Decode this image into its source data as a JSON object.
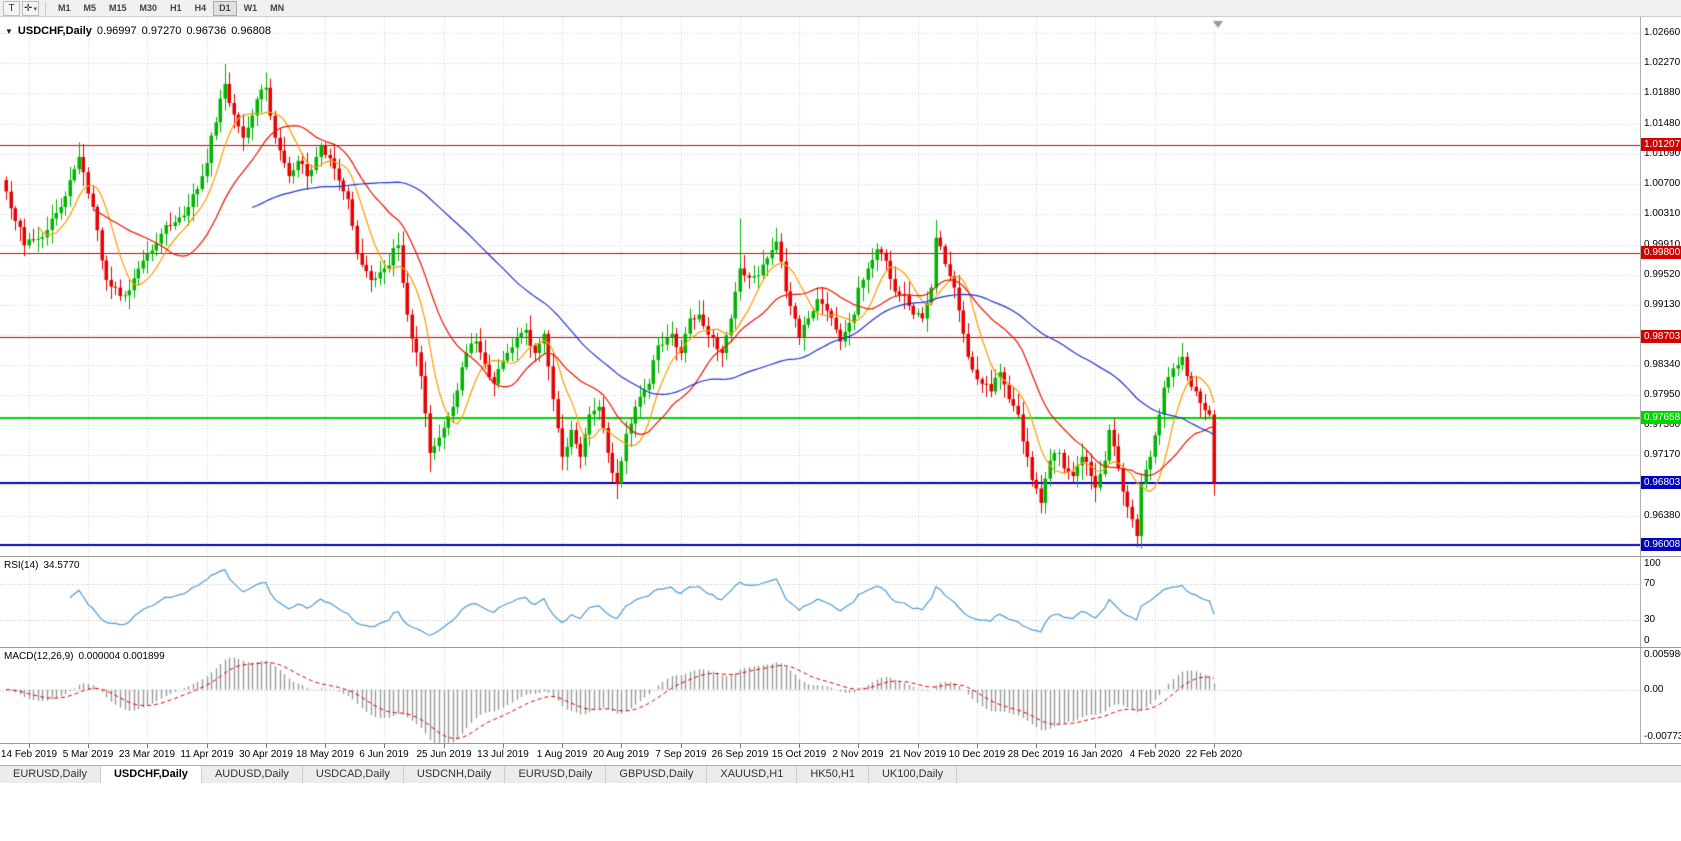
{
  "toolbar": {
    "text_tool_icon": "T",
    "crosshair_icon": "✛",
    "dropdown_icon": "▾",
    "timeframes": [
      "M1",
      "M5",
      "M15",
      "M30",
      "H1",
      "H4",
      "D1",
      "W1",
      "MN"
    ],
    "active_timeframe": "D1"
  },
  "chart_header": {
    "collapse_icon": "▼",
    "symbol": "USDCHF,Daily",
    "open": "0.96997",
    "high": "0.97270",
    "low": "0.96736",
    "close": "0.96808"
  },
  "price_axis": {
    "labels": [
      "1.02660",
      "1.02270",
      "1.01880",
      "1.01480",
      "1.01090",
      "1.00700",
      "1.00310",
      "0.99910",
      "0.99520",
      "0.99130",
      "0.98730",
      "0.98340",
      "0.97950",
      "0.97560",
      "0.97170",
      "0.96780",
      "0.96380"
    ],
    "max": 1.0287,
    "min": 0.9586
  },
  "levels": [
    {
      "value": 1.01207,
      "label": "1.01207",
      "color": "#d40000",
      "width": 1
    },
    {
      "value": 0.998,
      "label": "0.99800",
      "color": "#d40000",
      "width": 1
    },
    {
      "value": 0.98703,
      "label": "0.98703",
      "color": "#d40000",
      "width": 1
    },
    {
      "value": 0.97658,
      "label": "0.97658",
      "color": "#00d400",
      "width": 2
    },
    {
      "value": 0.96803,
      "label": "0.96803",
      "color": "#0000c0",
      "width": 2
    },
    {
      "value": 0.96008,
      "label": "0.96008",
      "color": "#0000c0",
      "width": 2
    }
  ],
  "chart_data": {
    "type": "candlestick",
    "symbol": "USDCHF",
    "timeframe": "Daily",
    "bars": 266,
    "ylim": [
      0.9586,
      1.0287
    ],
    "up_color": "#00b300",
    "down_color": "#e60000",
    "grid_color": "#d2d2d2",
    "shift_marker_color": "#999999",
    "moving_averages": [
      {
        "period": 8,
        "color": "#ff9900"
      },
      {
        "period": 20,
        "color": "#ee1100"
      },
      {
        "period": 55,
        "color": "#2233cc"
      }
    ],
    "close_anchors": [
      [
        0,
        1.006
      ],
      [
        4,
        0.999
      ],
      [
        9,
        1.001
      ],
      [
        12,
        1.004
      ],
      [
        16,
        1.0105
      ],
      [
        19,
        1.004
      ],
      [
        22,
        0.9945
      ],
      [
        26,
        0.9925
      ],
      [
        30,
        0.997
      ],
      [
        34,
        1.0005
      ],
      [
        37,
        1.002
      ],
      [
        40,
        1.004
      ],
      [
        43,
        1.008
      ],
      [
        46,
        1.015
      ],
      [
        48,
        1.02
      ],
      [
        50,
        1.016
      ],
      [
        52,
        1.013
      ],
      [
        55,
        1.018
      ],
      [
        57,
        1.0195
      ],
      [
        59,
        1.013
      ],
      [
        62,
        1.008
      ],
      [
        64,
        1.01
      ],
      [
        66,
        1.008
      ],
      [
        69,
        1.012
      ],
      [
        72,
        1.009
      ],
      [
        75,
        1.005
      ],
      [
        77,
        0.998
      ],
      [
        80,
        0.9945
      ],
      [
        83,
        0.996
      ],
      [
        86,
        0.999
      ],
      [
        88,
        0.99
      ],
      [
        91,
        0.982
      ],
      [
        93,
        0.972
      ],
      [
        95,
        0.974
      ],
      [
        98,
        0.978
      ],
      [
        101,
        0.985
      ],
      [
        103,
        0.9865
      ],
      [
        105,
        0.9835
      ],
      [
        107,
        0.981
      ],
      [
        109,
        0.984
      ],
      [
        112,
        0.987
      ],
      [
        114,
        0.988
      ],
      [
        116,
        0.985
      ],
      [
        118,
        0.9875
      ],
      [
        120,
        0.979
      ],
      [
        122,
        0.9715
      ],
      [
        124,
        0.975
      ],
      [
        126,
        0.9715
      ],
      [
        128,
        0.977
      ],
      [
        130,
        0.978
      ],
      [
        132,
        0.972
      ],
      [
        134,
        0.968
      ],
      [
        136,
        0.9745
      ],
      [
        138,
        0.978
      ],
      [
        141,
        0.981
      ],
      [
        143,
        0.986
      ],
      [
        146,
        0.9875
      ],
      [
        148,
        0.985
      ],
      [
        150,
        0.9895
      ],
      [
        152,
        0.99
      ],
      [
        155,
        0.987
      ],
      [
        157,
        0.985
      ],
      [
        159,
        0.9895
      ],
      [
        161,
        0.996
      ],
      [
        164,
        0.995
      ],
      [
        166,
        0.9965
      ],
      [
        169,
        0.9995
      ],
      [
        171,
        0.993
      ],
      [
        174,
        0.987
      ],
      [
        176,
        0.9895
      ],
      [
        178,
        0.992
      ],
      [
        180,
        0.9905
      ],
      [
        183,
        0.9865
      ],
      [
        186,
        0.99
      ],
      [
        187,
        0.9935
      ],
      [
        189,
        0.996
      ],
      [
        191,
        0.9985
      ],
      [
        193,
        0.997
      ],
      [
        195,
        0.993
      ],
      [
        197,
        0.9925
      ],
      [
        199,
        0.99
      ],
      [
        201,
        0.9895
      ],
      [
        203,
        0.9935
      ],
      [
        204,
        1.0
      ],
      [
        207,
        0.995
      ],
      [
        208,
        0.9935
      ],
      [
        210,
        0.9875
      ],
      [
        211,
        0.9845
      ],
      [
        214,
        0.981
      ],
      [
        216,
        0.98
      ],
      [
        218,
        0.9825
      ],
      [
        220,
        0.979
      ],
      [
        222,
        0.977
      ],
      [
        223,
        0.9735
      ],
      [
        225,
        0.9685
      ],
      [
        227,
        0.9655
      ],
      [
        229,
        0.971
      ],
      [
        231,
        0.972
      ],
      [
        232,
        0.97
      ],
      [
        234,
        0.969
      ],
      [
        236,
        0.9715
      ],
      [
        238,
        0.969
      ],
      [
        239,
        0.9675
      ],
      [
        241,
        0.971
      ],
      [
        242,
        0.975
      ],
      [
        244,
        0.97
      ],
      [
        246,
        0.965
      ],
      [
        248,
        0.9612
      ],
      [
        249,
        0.968
      ],
      [
        251,
        0.9715
      ],
      [
        253,
        0.977
      ],
      [
        254,
        0.9805
      ],
      [
        256,
        0.983
      ],
      [
        258,
        0.9845
      ],
      [
        259,
        0.982
      ],
      [
        261,
        0.98
      ],
      [
        262,
        0.9785
      ],
      [
        264,
        0.977
      ],
      [
        265,
        0.9681
      ]
    ],
    "extremes": [
      {
        "bar": 16,
        "high": 1.0124
      },
      {
        "bar": 48,
        "high": 1.0226
      },
      {
        "bar": 57,
        "high": 1.0215
      },
      {
        "bar": 93,
        "low": 0.9695
      },
      {
        "bar": 134,
        "low": 0.966
      },
      {
        "bar": 161,
        "high": 1.0025
      },
      {
        "bar": 204,
        "high": 1.0023
      },
      {
        "bar": 227,
        "low": 0.9646
      },
      {
        "bar": 248,
        "low": 0.9601
      },
      {
        "bar": 265,
        "low": 0.9674,
        "high": 0.9727
      }
    ],
    "date_ticks": [
      {
        "bar": 5,
        "label": "14 Feb 2019"
      },
      {
        "bar": 18,
        "label": "5 Mar 2019"
      },
      {
        "bar": 31,
        "label": "23 Mar 2019"
      },
      {
        "bar": 44,
        "label": "11 Apr 2019"
      },
      {
        "bar": 57,
        "label": "30 Apr 2019"
      },
      {
        "bar": 70,
        "label": "18 May 2019"
      },
      {
        "bar": 83,
        "label": "6 Jun 2019"
      },
      {
        "bar": 96,
        "label": "25 Jun 2019"
      },
      {
        "bar": 109,
        "label": "13 Jul 2019"
      },
      {
        "bar": 122,
        "label": "1 Aug 2019"
      },
      {
        "bar": 135,
        "label": "20 Aug 2019"
      },
      {
        "bar": 148,
        "label": "7 Sep 2019"
      },
      {
        "bar": 161,
        "label": "26 Sep 2019"
      },
      {
        "bar": 174,
        "label": "15 Oct 2019"
      },
      {
        "bar": 187,
        "label": "2 Nov 2019"
      },
      {
        "bar": 200,
        "label": "21 Nov 2019"
      },
      {
        "bar": 213,
        "label": "10 Dec 2019"
      },
      {
        "bar": 226,
        "label": "28 Dec 2019"
      },
      {
        "bar": 239,
        "label": "16 Jan 2020"
      },
      {
        "bar": 252,
        "label": "4 Feb 2020"
      },
      {
        "bar": 265,
        "label": "22 Feb 2020"
      }
    ]
  },
  "rsi": {
    "title": "RSI(14)",
    "value": "34.5770",
    "period": 14,
    "upper_level": 70,
    "lower_level": 30,
    "color": "#4f9bd5",
    "axis": [
      {
        "label": "100",
        "value": 100
      },
      {
        "label": "70",
        "value": 70
      },
      {
        "label": "30",
        "value": 30
      },
      {
        "label": "0",
        "value": 0
      }
    ]
  },
  "macd": {
    "title": "MACD(12,26,9)",
    "values": "0.000004 0.001899",
    "fast": 12,
    "slow": 26,
    "signal": 9,
    "ylim": [
      -0.0077,
      0.006
    ],
    "hist_color": "#999999",
    "signal_color": "#dd0000",
    "axis": [
      {
        "label": "0.005986",
        "value": 0.005986
      },
      {
        "label": "0.00",
        "value": 0
      },
      {
        "label": "-0.007733",
        "value": -0.007733
      }
    ]
  },
  "tabs": {
    "items": [
      "EURUSD,Daily",
      "USDCHF,Daily",
      "AUDUSD,Daily",
      "USDCAD,Daily",
      "USDCNH,Daily",
      "EURUSD,Daily",
      "GBPUSD,Daily",
      "XAUUSD,H1",
      "HK50,H1",
      "UK100,Daily"
    ],
    "active_index": 1
  }
}
